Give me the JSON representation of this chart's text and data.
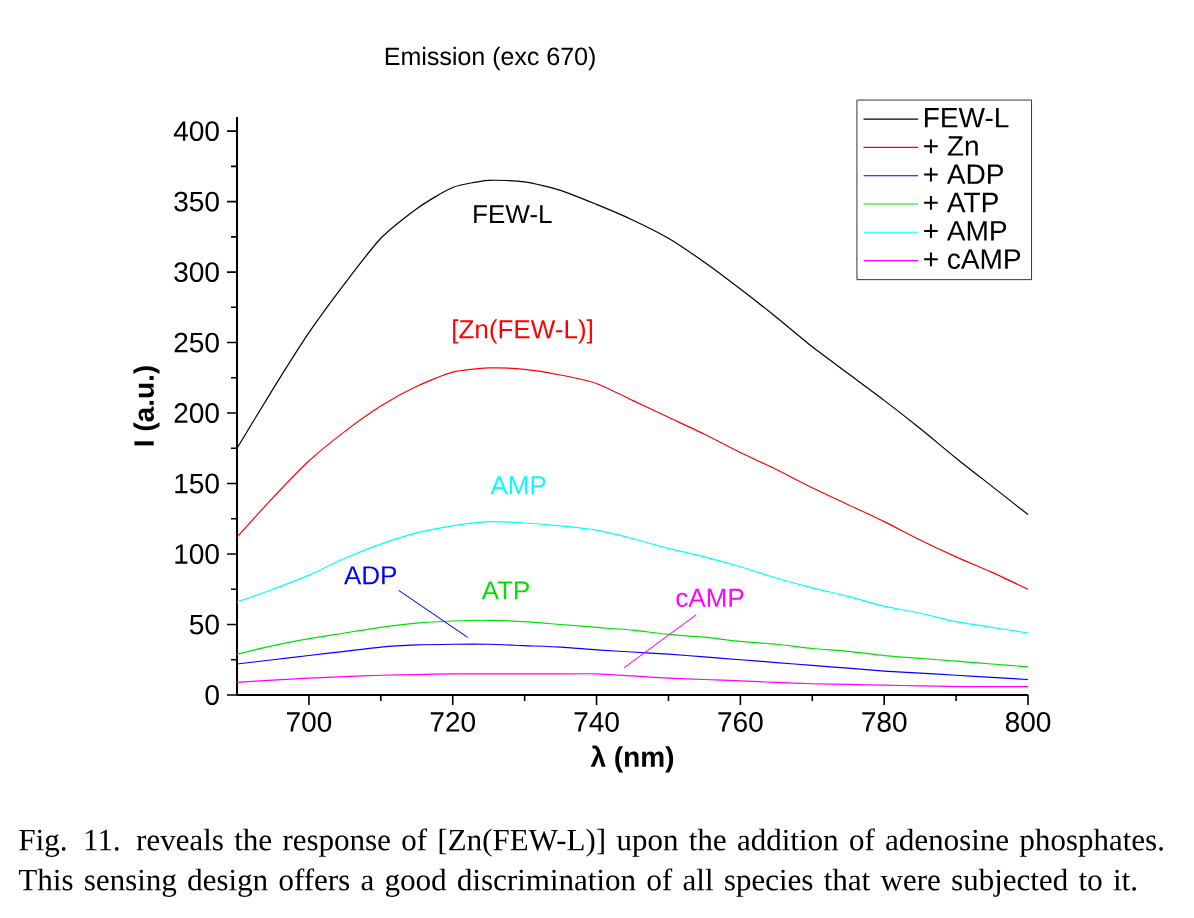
{
  "chart_data": {
    "type": "line",
    "title": "Emission (exc 670)",
    "xlabel": "λ (nm)",
    "ylabel": "I (a.u.)",
    "x": [
      690,
      695,
      700,
      705,
      710,
      715,
      720,
      725,
      730,
      735,
      740,
      745,
      750,
      755,
      760,
      765,
      770,
      775,
      780,
      785,
      790,
      795,
      800
    ],
    "series": [
      {
        "name": "FEW-L",
        "color": "#000000",
        "values": [
          175,
          217,
          257,
          292,
          324,
          345,
          360,
          365,
          364,
          358,
          348,
          337,
          324,
          307,
          288,
          268,
          247,
          228,
          209,
          189,
          168,
          148,
          128
        ]
      },
      {
        "name": "+ Zn",
        "color": "#ff0000",
        "values": [
          112,
          140,
          166,
          187,
          205,
          219,
          229,
          232,
          231,
          227,
          221,
          209,
          197,
          185,
          172,
          160,
          147,
          135,
          123,
          110,
          98,
          87,
          75
        ]
      },
      {
        "name": "+ ADP",
        "color": "#0000ff",
        "values": [
          22,
          25,
          28,
          31,
          34,
          35.5,
          36,
          36,
          35,
          34,
          32,
          30.5,
          29,
          27,
          25,
          23,
          21,
          19,
          17,
          15.5,
          14,
          12.5,
          11
        ]
      },
      {
        "name": "+ ATP",
        "color": "#00e000",
        "values": [
          29,
          35,
          40,
          44,
          48,
          51,
          52.5,
          53,
          52,
          50,
          48,
          46,
          43,
          41,
          38,
          36,
          33,
          31,
          28,
          26,
          24,
          22,
          20
        ]
      },
      {
        "name": "+ AMP",
        "color": "#00ffff",
        "values": [
          66,
          75,
          85,
          97,
          107,
          115,
          120,
          123,
          122,
          120,
          117,
          111,
          104,
          98,
          91,
          83,
          76,
          70,
          63,
          58,
          52,
          48,
          44
        ]
      },
      {
        "name": "+ cAMP",
        "color": "#ff00ff",
        "values": [
          9,
          10.5,
          12,
          13,
          14,
          14.5,
          15,
          15,
          15,
          15,
          15,
          13.5,
          12,
          11,
          10,
          9,
          8,
          7.5,
          7,
          6.5,
          6,
          6,
          6
        ]
      }
    ],
    "xlim": [
      690,
      800
    ],
    "xticks": [
      700,
      720,
      740,
      760,
      780,
      800
    ],
    "ylim": [
      0,
      410
    ],
    "yticks": [
      0,
      50,
      100,
      150,
      200,
      250,
      300,
      350,
      400
    ],
    "legend": "top right",
    "annotations": [
      "FEW-L",
      "[Zn(FEW-L)]",
      "ADP",
      "ATP",
      "AMP",
      "cAMP",
      "Fig. 11. reveals the response of [Zn(FEW-L)] upon the addition of adenosine phosphates. This sensing design offers a good discrimination of all species that were subjected to it."
    ]
  }
}
